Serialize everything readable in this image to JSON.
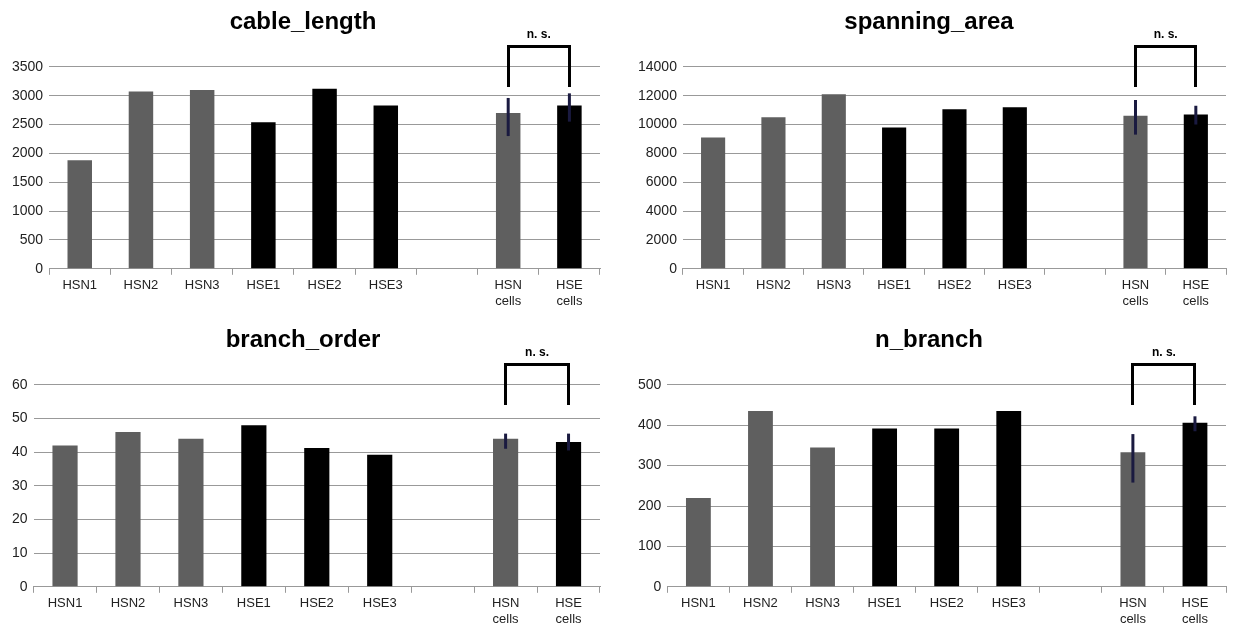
{
  "chart_data": [
    {
      "type": "bar",
      "title": "cable_length",
      "categories": [
        "HSN1",
        "HSN2",
        "HSN3",
        "HSE1",
        "HSE2",
        "HSE3",
        null,
        "HSN cells",
        "HSE cells"
      ],
      "values": [
        1880,
        3070,
        3100,
        2540,
        3120,
        2830,
        null,
        2700,
        2830
      ],
      "colors": [
        "#5f5f5f",
        "#5f5f5f",
        "#5f5f5f",
        "#000000",
        "#000000",
        "#000000",
        "#000000",
        "#5f5f5f",
        "#000000"
      ],
      "errors": [
        null,
        null,
        null,
        null,
        null,
        null,
        null,
        [
          2300,
          2960
        ],
        [
          2550,
          3040
        ]
      ],
      "ylim": [
        0,
        3500
      ],
      "yticks": [
        0,
        500,
        1000,
        1500,
        2000,
        2500,
        3000,
        3500
      ],
      "grid": "y",
      "annotations": [
        "n. s."
      ]
    },
    {
      "type": "bar",
      "title": "spanning_area",
      "categories": [
        "HSN1",
        "HSN2",
        "HSN3",
        "HSE1",
        "HSE2",
        "HSE3",
        null,
        "HSN cells",
        "HSE cells"
      ],
      "values": [
        9100,
        10500,
        12100,
        9800,
        11050,
        11200,
        null,
        10600,
        10700
      ],
      "colors": [
        "#5f5f5f",
        "#5f5f5f",
        "#5f5f5f",
        "#000000",
        "#000000",
        "#000000",
        "#000000",
        "#5f5f5f",
        "#000000"
      ],
      "errors": [
        null,
        null,
        null,
        null,
        null,
        null,
        null,
        [
          9300,
          11700
        ],
        [
          10000,
          11300
        ]
      ],
      "ylim": [
        0,
        14000
      ],
      "yticks": [
        0,
        2000,
        4000,
        6000,
        8000,
        10000,
        12000,
        14000
      ],
      "grid": "y",
      "annotations": [
        "n. s."
      ]
    },
    {
      "type": "bar",
      "title": "branch_order",
      "categories": [
        "HSN1",
        "HSN2",
        "HSN3",
        "HSE1",
        "HSE2",
        "HSE3",
        null,
        "HSN cells",
        "HSE cells"
      ],
      "values": [
        42,
        46,
        44,
        48,
        41.2,
        39.2,
        null,
        44,
        43
      ],
      "colors": [
        "#5f5f5f",
        "#5f5f5f",
        "#5f5f5f",
        "#000000",
        "#000000",
        "#000000",
        "#000000",
        "#5f5f5f",
        "#000000"
      ],
      "errors": [
        null,
        null,
        null,
        null,
        null,
        null,
        null,
        [
          41,
          45.5
        ],
        [
          40.5,
          45.5
        ]
      ],
      "ylim": [
        0,
        60
      ],
      "yticks": [
        0,
        10,
        20,
        30,
        40,
        50,
        60
      ],
      "grid": "y",
      "annotations": [
        "n. s."
      ]
    },
    {
      "type": "bar",
      "title": "n_branch",
      "categories": [
        "HSN1",
        "HSN2",
        "HSN3",
        "HSE1",
        "HSE2",
        "HSE3",
        null,
        "HSN cells",
        "HSE cells"
      ],
      "values": [
        220,
        435,
        345,
        392,
        392,
        435,
        null,
        333,
        406
      ],
      "colors": [
        "#5f5f5f",
        "#5f5f5f",
        "#5f5f5f",
        "#000000",
        "#000000",
        "#000000",
        "#000000",
        "#5f5f5f",
        "#000000"
      ],
      "errors": [
        null,
        null,
        null,
        null,
        null,
        null,
        null,
        [
          258,
          378
        ],
        [
          385,
          422
        ]
      ],
      "ylim": [
        0,
        500
      ],
      "yticks": [
        0,
        100,
        200,
        300,
        400,
        500
      ],
      "grid": "y",
      "annotations": [
        "n. s."
      ]
    }
  ]
}
